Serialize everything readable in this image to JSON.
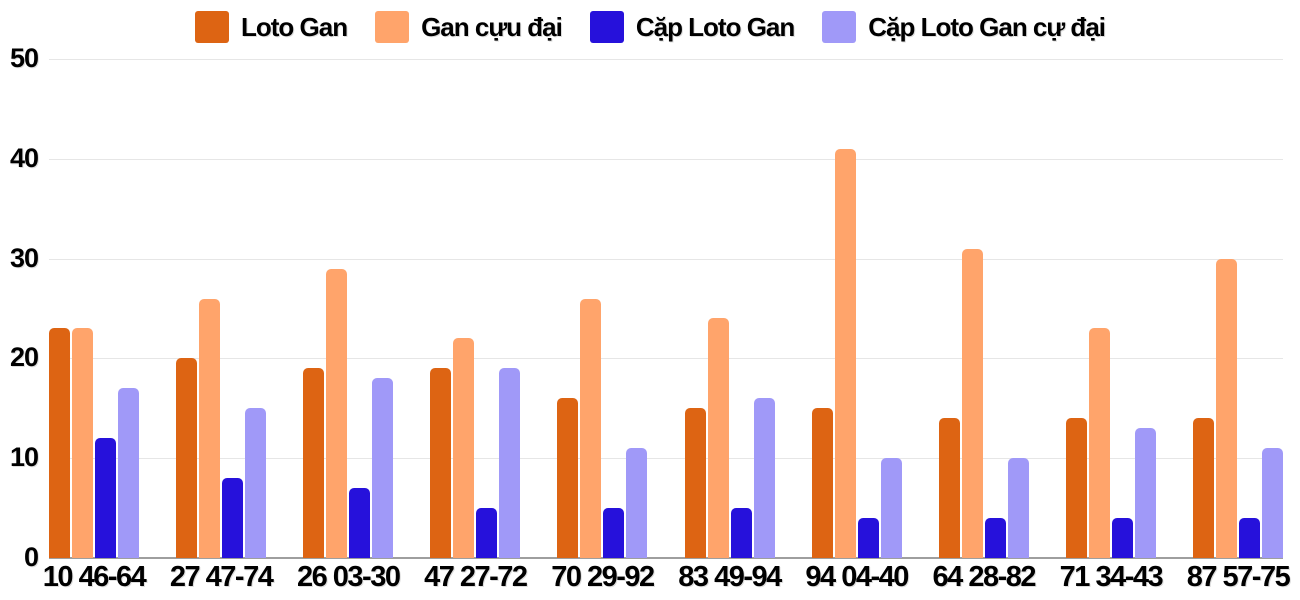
{
  "chart_data": {
    "type": "bar",
    "title": "",
    "categories": [
      "10 46-64",
      "27 47-74",
      "26 03-30",
      "47 27-72",
      "70 29-92",
      "83 49-94",
      "94 04-40",
      "64 28-82",
      "71 34-43",
      "87 57-75"
    ],
    "series": [
      {
        "name": "Loto Gan",
        "color": "#dd6413",
        "values": [
          23,
          20,
          19,
          19,
          16,
          15,
          15,
          14,
          14,
          14
        ]
      },
      {
        "name": "Gan cựu đại",
        "color": "#ffa46b",
        "values": [
          23,
          26,
          29,
          22,
          26,
          24,
          41,
          31,
          23,
          30
        ]
      },
      {
        "name": "Cặp Loto Gan",
        "color": "#2611db",
        "values": [
          12,
          8,
          7,
          5,
          5,
          5,
          4,
          4,
          4,
          4
        ]
      },
      {
        "name": "Cặp Loto Gan cự đại",
        "color": "#a099f8",
        "values": [
          17,
          15,
          18,
          19,
          11,
          16,
          10,
          10,
          13,
          11
        ]
      }
    ],
    "xlabel": "",
    "ylabel": "",
    "ylim": [
      0,
      50
    ],
    "yticks": [
      0,
      10,
      20,
      30,
      40,
      50
    ],
    "ytick_labels": [
      "0",
      "10",
      "20",
      "30",
      "40",
      "50"
    ],
    "grid": true,
    "legend_position": "top",
    "colors": {
      "gridline": "#e6e6e6",
      "baseline": "#9e9e9e",
      "label_text": "#000000",
      "background": "#ffffff"
    }
  }
}
